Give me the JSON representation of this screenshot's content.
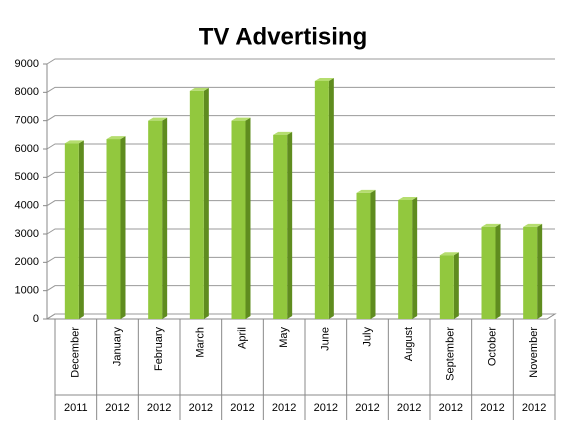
{
  "chart_data": {
    "type": "bar3d",
    "title": "TV Advertising",
    "categories": [
      "December",
      "January",
      "February",
      "March",
      "April",
      "May",
      "June",
      "July",
      "August",
      "September",
      "October",
      "November"
    ],
    "category_groups": [
      "2011",
      "2012",
      "2012",
      "2012",
      "2012",
      "2012",
      "2012",
      "2012",
      "2012",
      "2012",
      "2012",
      "2012"
    ],
    "values": [
      6200,
      6350,
      7000,
      8050,
      7000,
      6500,
      8400,
      4450,
      4200,
      2250,
      3250,
      3250
    ],
    "color": "#92c83e",
    "ylim": [
      0,
      9000
    ],
    "yticks": [
      0,
      1000,
      2000,
      3000,
      4000,
      5000,
      6000,
      7000,
      8000,
      9000
    ],
    "grid": true
  }
}
